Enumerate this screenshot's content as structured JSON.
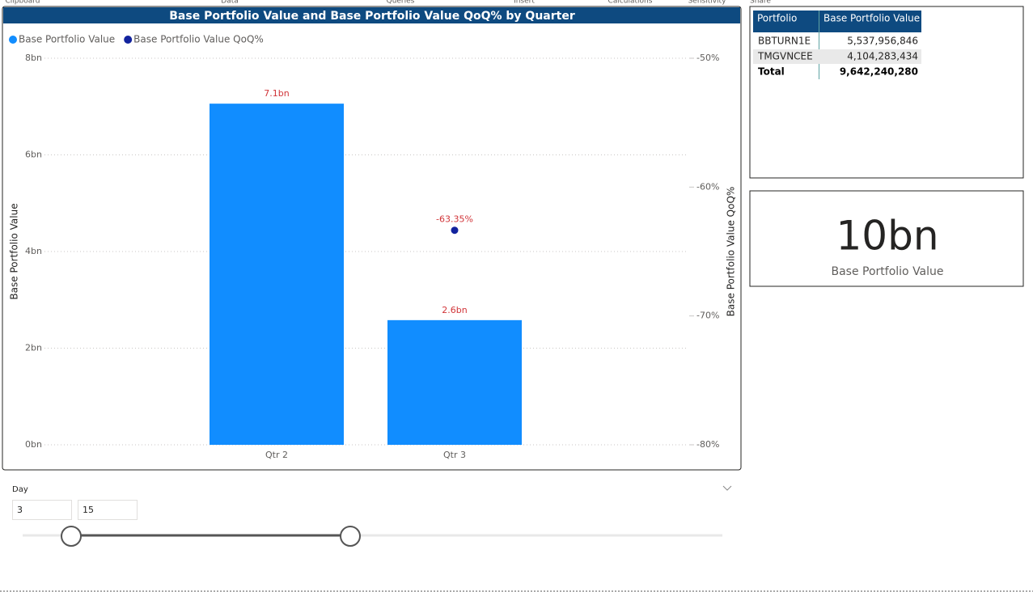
{
  "ribbon": [
    "Clipboard",
    "Data",
    "Queries",
    "Insert",
    "Calculations",
    "Sensitivity",
    "Share"
  ],
  "chart_data": {
    "type": "bar",
    "title": "Base Portfolio Value and Base Portfolio Value QoQ% by Quarter",
    "y_label": "Base Portfolio Value",
    "y2_label": "Base Portfolio Value QoQ%",
    "categories": [
      "Qtr 2",
      "Qtr 3"
    ],
    "series": [
      {
        "name": "Base Portfolio Value",
        "color": "#118dff",
        "type": "bar",
        "values": [
          7.06,
          2.58
        ],
        "value_labels": [
          "7.1bn",
          "2.6bn"
        ]
      },
      {
        "name": "Base Portfolio Value QoQ%",
        "color": "#12239e",
        "type": "scatter",
        "axis": "y2",
        "values": [
          null,
          -63.35
        ],
        "value_labels": [
          null,
          "-63.35%"
        ]
      }
    ],
    "label_color": "#d13438",
    "ylim": [
      0,
      8
    ],
    "yticks": [
      {
        "value": 0,
        "label": "0bn"
      },
      {
        "value": 2,
        "label": "2bn"
      },
      {
        "value": 4,
        "label": "4bn"
      },
      {
        "value": 6,
        "label": "6bn"
      },
      {
        "value": 8,
        "label": "8bn"
      }
    ],
    "y2lim": [
      -80,
      -50
    ],
    "y2ticks": [
      {
        "value": -80,
        "label": "-80%"
      },
      {
        "value": -70,
        "label": "-70%"
      },
      {
        "value": -60,
        "label": "-60%"
      },
      {
        "value": -50,
        "label": "-50%"
      }
    ],
    "grid": true,
    "legend": "top-left"
  },
  "table": {
    "columns": [
      "Portfolio",
      "Base Portfolio Value"
    ],
    "rows": [
      [
        "BBTURN1E",
        "5,537,956,846"
      ],
      [
        "TMGVNCEE",
        "4,104,283,434"
      ]
    ],
    "total": [
      "Total",
      "9,642,240,280"
    ]
  },
  "card": {
    "value": "10bn",
    "label": "Base Portfolio Value"
  },
  "slicer": {
    "title": "Day",
    "min": "3",
    "max": "15"
  }
}
